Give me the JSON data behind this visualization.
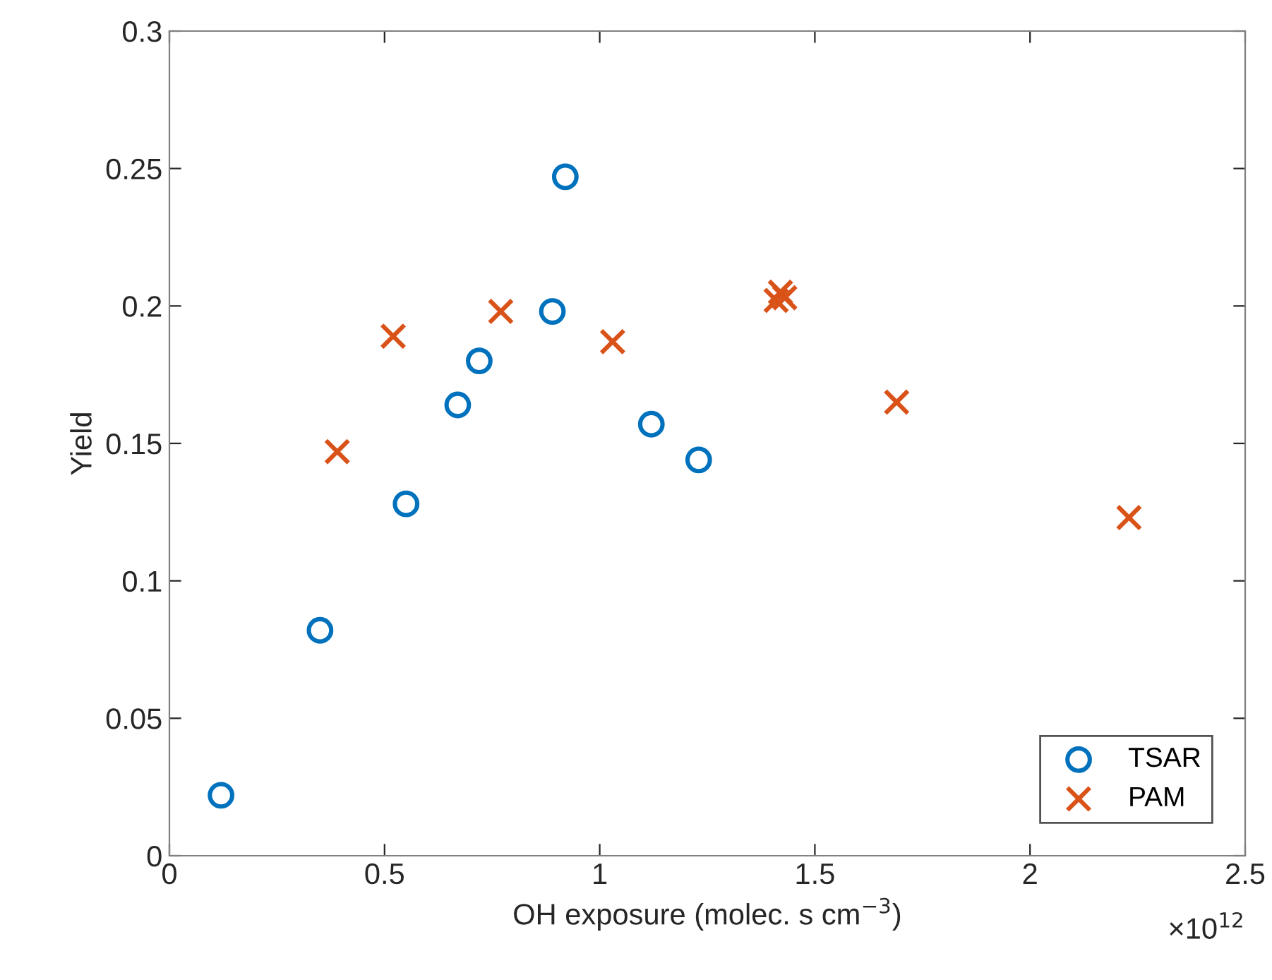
{
  "chart_data": {
    "type": "scatter",
    "xlabel": "OH exposure (molec. s cm$^{−3}$)",
    "ylabel": "Yield",
    "annotations": [
      "×10$^{12}$"
    ],
    "series": [
      {
        "name": "TSAR",
        "color": "#0072bd",
        "marker": "circle",
        "x": [
          0.12,
          0.35,
          0.55,
          0.67,
          0.72,
          0.89,
          0.92,
          1.12,
          1.23
        ],
        "values": [
          0.022,
          0.082,
          0.128,
          0.164,
          0.18,
          0.198,
          0.247,
          0.157,
          0.144
        ]
      },
      {
        "name": "PAM",
        "color": "#d95319",
        "marker": "cross",
        "x": [
          0.39,
          0.52,
          0.77,
          1.03,
          1.41,
          1.42,
          1.43,
          1.69,
          2.23
        ],
        "values": [
          0.147,
          0.189,
          0.198,
          0.187,
          0.202,
          0.205,
          0.203,
          0.165,
          0.123
        ]
      }
    ],
    "xlim": [
      0,
      2.5
    ],
    "xticks": [
      0,
      0.5,
      1,
      1.5,
      2,
      2.5
    ],
    "ylim": [
      0,
      0.3
    ],
    "yticks": [
      0,
      0.05,
      0.1,
      0.15,
      0.2,
      0.25,
      0.3
    ],
    "grid": false,
    "legend": "bottom right"
  }
}
